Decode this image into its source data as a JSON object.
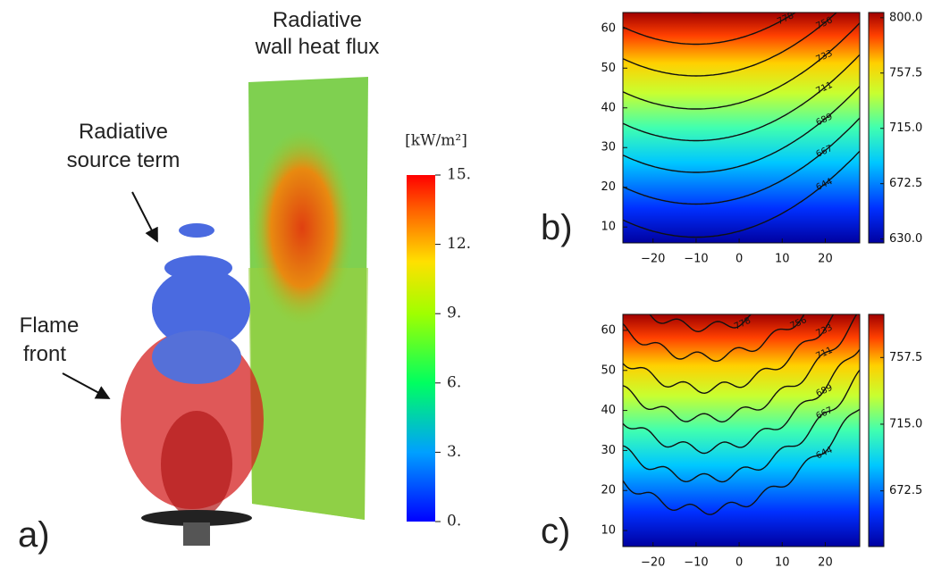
{
  "figure_a": {
    "label": "a)",
    "wall_label": [
      "Radiative",
      "wall heat flux"
    ],
    "source_label": [
      "Radiative",
      "source term"
    ],
    "flame_label": [
      "Flame",
      "front"
    ],
    "colorbar": {
      "title": "[kW/m²]",
      "lim": [
        0,
        15
      ],
      "ticks": [
        {
          "value": 15,
          "label": "15."
        },
        {
          "value": 12,
          "label": "12."
        },
        {
          "value": 9,
          "label": "9."
        },
        {
          "value": 6,
          "label": "6."
        },
        {
          "value": 3,
          "label": "3."
        },
        {
          "value": 0,
          "label": "0."
        }
      ]
    }
  },
  "chart_data": [
    {
      "type": "contour",
      "label": "b)",
      "xlim": [
        -27,
        28
      ],
      "ylim": [
        6,
        64
      ],
      "xticks": [
        {
          "value": -20,
          "label": "−20"
        },
        {
          "value": -10,
          "label": "−10"
        },
        0,
        10,
        20
      ],
      "yticks": [
        10,
        20,
        30,
        40,
        50,
        60
      ],
      "levels": [
        644,
        667,
        689,
        711,
        733,
        756,
        778,
        800
      ],
      "colorbar_lim": [
        627,
        804
      ],
      "colorbar_ticks": [
        {
          "value": 800,
          "label": "800.0"
        },
        {
          "value": 757.5,
          "label": "757.5"
        },
        {
          "value": 715,
          "label": "715.0"
        },
        {
          "value": 672.5,
          "label": "672.5"
        },
        {
          "value": 630,
          "label": "630.0"
        }
      ]
    },
    {
      "type": "contour",
      "label": "c)",
      "xlim": [
        -27,
        28
      ],
      "ylim": [
        6,
        64
      ],
      "xticks": [
        {
          "value": -20,
          "label": "−20"
        },
        {
          "value": -10,
          "label": "−10"
        },
        0,
        10,
        20
      ],
      "yticks": [
        10,
        20,
        30,
        40,
        50,
        60
      ],
      "levels": [
        644,
        667,
        689,
        711,
        733,
        756,
        778
      ],
      "colorbar_lim": [
        637,
        785
      ],
      "colorbar_ticks": [
        {
          "value": 757.5,
          "label": "757.5"
        },
        {
          "value": 715,
          "label": "715.0"
        },
        {
          "value": 672.5,
          "label": "672.5"
        }
      ]
    }
  ]
}
